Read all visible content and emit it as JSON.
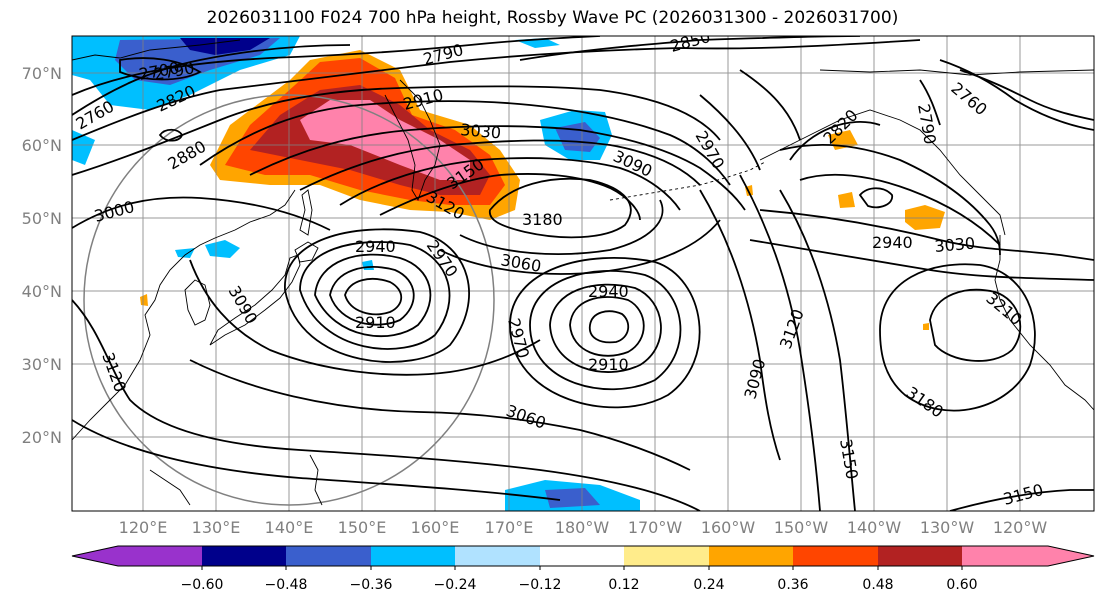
{
  "title": "2026031100 F024 700 hPa height, Rossby Wave PC (2026031300 - 2026031700)",
  "lat_labels": [
    "70°N",
    "60°N",
    "50°N",
    "40°N",
    "30°N",
    "20°N"
  ],
  "lon_labels": [
    "120°E",
    "130°E",
    "140°E",
    "150°E",
    "160°E",
    "170°E",
    "180°W",
    "170°W",
    "160°W",
    "150°W",
    "140°W",
    "130°W",
    "120°W"
  ],
  "contour_labels": [
    "2700",
    "2760",
    "2790",
    "2820",
    "2850",
    "2880",
    "2910",
    "2940",
    "2970",
    "3000",
    "3030",
    "3060",
    "3090",
    "3120",
    "3150",
    "3180",
    "3210"
  ],
  "colorbar": {
    "ticks": [
      "−0.60",
      "−0.48",
      "−0.36",
      "−0.24",
      "−0.12",
      "0.12",
      "0.24",
      "0.36",
      "0.48",
      "0.60"
    ],
    "colors": [
      "#9932cc",
      "#00008b",
      "#3a5fcd",
      "#00bfff",
      "#b0e2ff",
      "#ffffff",
      "#ffec8b",
      "#ffa500",
      "#ff4500",
      "#b22222",
      "#ff82ab"
    ]
  },
  "colors": {
    "contour": "#000000",
    "grid": "#808080",
    "coast": "#000000"
  }
}
